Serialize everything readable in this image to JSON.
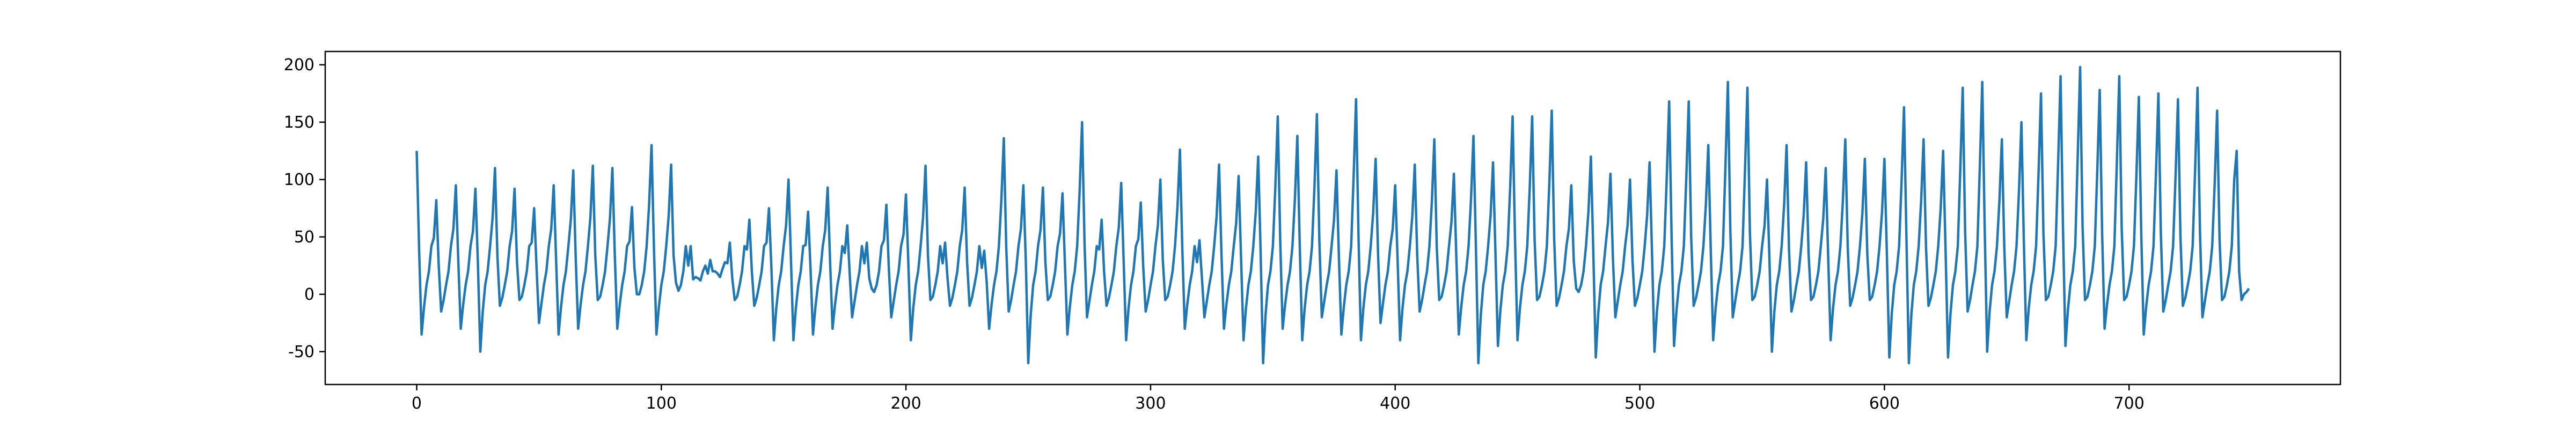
{
  "chart_data": {
    "type": "line",
    "color": "#1f77b4",
    "xlim": [
      -37.4,
      786.4
    ],
    "xticks": [
      0,
      100,
      200,
      300,
      400,
      500,
      600,
      700
    ],
    "ylim": [
      -78.6,
      211.6
    ],
    "yticks": [
      -50,
      0,
      50,
      100,
      150,
      200
    ],
    "values": [
      125,
      38,
      -35,
      -11,
      8,
      20,
      42,
      49,
      82,
      25,
      -15,
      -5,
      8,
      20,
      42,
      57,
      95,
      29,
      -30,
      -9,
      8,
      20,
      42,
      55,
      92,
      28,
      -50,
      -15,
      8,
      20,
      42,
      66,
      110,
      33,
      -10,
      -3,
      8,
      20,
      42,
      55,
      92,
      28,
      -5,
      -2,
      8,
      20,
      42,
      45,
      75,
      23,
      -25,
      -8,
      8,
      20,
      42,
      57,
      95,
      29,
      -35,
      -11,
      8,
      20,
      42,
      65,
      108,
      32,
      -30,
      -9,
      8,
      20,
      42,
      67,
      112,
      34,
      -5,
      -2,
      8,
      20,
      42,
      66,
      110,
      33,
      -30,
      -9,
      8,
      20,
      42,
      46,
      76,
      23,
      0,
      0,
      8,
      20,
      42,
      78,
      130,
      39,
      -35,
      -11,
      8,
      20,
      42,
      68,
      113,
      34,
      10,
      3,
      8,
      20,
      42,
      25,
      42,
      13,
      15,
      14,
      12,
      20,
      25,
      18,
      30,
      20,
      20,
      18,
      15,
      22,
      28,
      27,
      45,
      14,
      -5,
      -2,
      8,
      20,
      42,
      39,
      65,
      20,
      -10,
      -3,
      8,
      20,
      42,
      45,
      75,
      23,
      -40,
      -12,
      8,
      20,
      42,
      60,
      100,
      30,
      -40,
      -12,
      8,
      20,
      42,
      43,
      72,
      22,
      -35,
      -11,
      8,
      20,
      42,
      56,
      93,
      28,
      -30,
      -9,
      8,
      20,
      42,
      36,
      60,
      18,
      -20,
      -6,
      8,
      20,
      42,
      27,
      45,
      14,
      5,
      2,
      8,
      20,
      42,
      47,
      78,
      23,
      -20,
      -6,
      8,
      20,
      42,
      52,
      87,
      26,
      -40,
      -12,
      8,
      20,
      42,
      67,
      112,
      34,
      -5,
      -2,
      8,
      20,
      42,
      27,
      45,
      14,
      -10,
      -3,
      8,
      20,
      42,
      56,
      93,
      28,
      -10,
      -3,
      8,
      20,
      42,
      23,
      38,
      11,
      -30,
      -9,
      8,
      20,
      42,
      82,
      136,
      41,
      -15,
      -5,
      8,
      20,
      42,
      57,
      95,
      29,
      -60,
      -18,
      8,
      20,
      42,
      56,
      93,
      28,
      -5,
      -2,
      8,
      20,
      42,
      53,
      88,
      26,
      -35,
      -11,
      8,
      20,
      42,
      90,
      150,
      45,
      -20,
      -6,
      8,
      20,
      42,
      39,
      65,
      20,
      -10,
      -3,
      8,
      20,
      42,
      58,
      97,
      29,
      -40,
      -12,
      8,
      20,
      42,
      48,
      80,
      24,
      -15,
      -5,
      8,
      20,
      42,
      60,
      100,
      30,
      -5,
      -2,
      8,
      20,
      42,
      76,
      126,
      38,
      -30,
      -9,
      8,
      20,
      42,
      28,
      47,
      14,
      -20,
      -6,
      8,
      20,
      42,
      68,
      113,
      34,
      -30,
      -9,
      8,
      20,
      42,
      62,
      103,
      31,
      -40,
      -12,
      8,
      20,
      42,
      72,
      120,
      36,
      -60,
      -18,
      8,
      20,
      42,
      93,
      155,
      47,
      -30,
      -9,
      8,
      20,
      42,
      83,
      138,
      41,
      -40,
      -12,
      8,
      20,
      42,
      94,
      157,
      47,
      -20,
      -6,
      8,
      20,
      42,
      65,
      108,
      32,
      -35,
      -11,
      8,
      20,
      42,
      102,
      170,
      51,
      -40,
      -12,
      8,
      20,
      42,
      71,
      118,
      35,
      -25,
      -8,
      8,
      20,
      42,
      57,
      95,
      29,
      -40,
      -12,
      8,
      20,
      42,
      68,
      113,
      34,
      -15,
      -5,
      8,
      20,
      42,
      81,
      135,
      41,
      -5,
      -2,
      8,
      20,
      42,
      63,
      105,
      32,
      -35,
      -11,
      8,
      20,
      42,
      83,
      138,
      41,
      -60,
      -18,
      8,
      20,
      42,
      69,
      115,
      35,
      -45,
      -14,
      8,
      20,
      42,
      93,
      155,
      47,
      -40,
      -12,
      8,
      20,
      42,
      93,
      155,
      47,
      -5,
      -2,
      8,
      20,
      42,
      96,
      160,
      48,
      -10,
      -3,
      8,
      20,
      42,
      57,
      95,
      29,
      5,
      2,
      8,
      20,
      42,
      72,
      120,
      36,
      -55,
      -17,
      8,
      20,
      42,
      63,
      105,
      32,
      -20,
      -6,
      8,
      20,
      42,
      60,
      100,
      30,
      -10,
      -3,
      8,
      20,
      42,
      69,
      115,
      35,
      -50,
      -15,
      8,
      20,
      42,
      101,
      168,
      50,
      -45,
      -14,
      8,
      20,
      42,
      101,
      168,
      50,
      -10,
      -3,
      8,
      20,
      42,
      78,
      130,
      39,
      -40,
      -12,
      8,
      20,
      42,
      111,
      185,
      56,
      -20,
      -6,
      8,
      20,
      42,
      108,
      180,
      54,
      -5,
      -2,
      8,
      20,
      42,
      60,
      100,
      30,
      -50,
      -15,
      8,
      20,
      42,
      78,
      130,
      39,
      -15,
      -5,
      8,
      20,
      42,
      69,
      115,
      35,
      -5,
      -2,
      8,
      20,
      42,
      66,
      110,
      33,
      -40,
      -12,
      8,
      20,
      42,
      81,
      135,
      41,
      -10,
      -3,
      8,
      20,
      42,
      71,
      118,
      35,
      -5,
      -2,
      8,
      20,
      42,
      71,
      118,
      35,
      -55,
      -17,
      8,
      20,
      42,
      98,
      163,
      49,
      -60,
      -18,
      8,
      20,
      42,
      81,
      135,
      41,
      -10,
      -3,
      8,
      20,
      42,
      75,
      125,
      38,
      -55,
      -17,
      8,
      20,
      42,
      108,
      180,
      54,
      -15,
      -5,
      8,
      20,
      42,
      111,
      185,
      56,
      -50,
      -15,
      8,
      20,
      42,
      81,
      135,
      41,
      -20,
      -6,
      8,
      20,
      42,
      90,
      150,
      45,
      -40,
      -12,
      8,
      20,
      42,
      105,
      175,
      53,
      -5,
      -2,
      8,
      20,
      42,
      114,
      190,
      57,
      -45,
      -14,
      8,
      20,
      42,
      119,
      198,
      59,
      -5,
      -2,
      8,
      20,
      42,
      107,
      178,
      53,
      -30,
      -9,
      8,
      20,
      42,
      114,
      190,
      57,
      -5,
      -2,
      8,
      20,
      42,
      103,
      172,
      52,
      -35,
      -11,
      8,
      20,
      42,
      105,
      175,
      53,
      -15,
      -5,
      8,
      20,
      42,
      102,
      170,
      51,
      -10,
      -3,
      8,
      20,
      42,
      108,
      180,
      54,
      -20,
      -6,
      8,
      20,
      42,
      96,
      160,
      48,
      -5,
      -2,
      8,
      20,
      42,
      100,
      125,
      20,
      -5,
      0,
      2,
      5
    ]
  }
}
